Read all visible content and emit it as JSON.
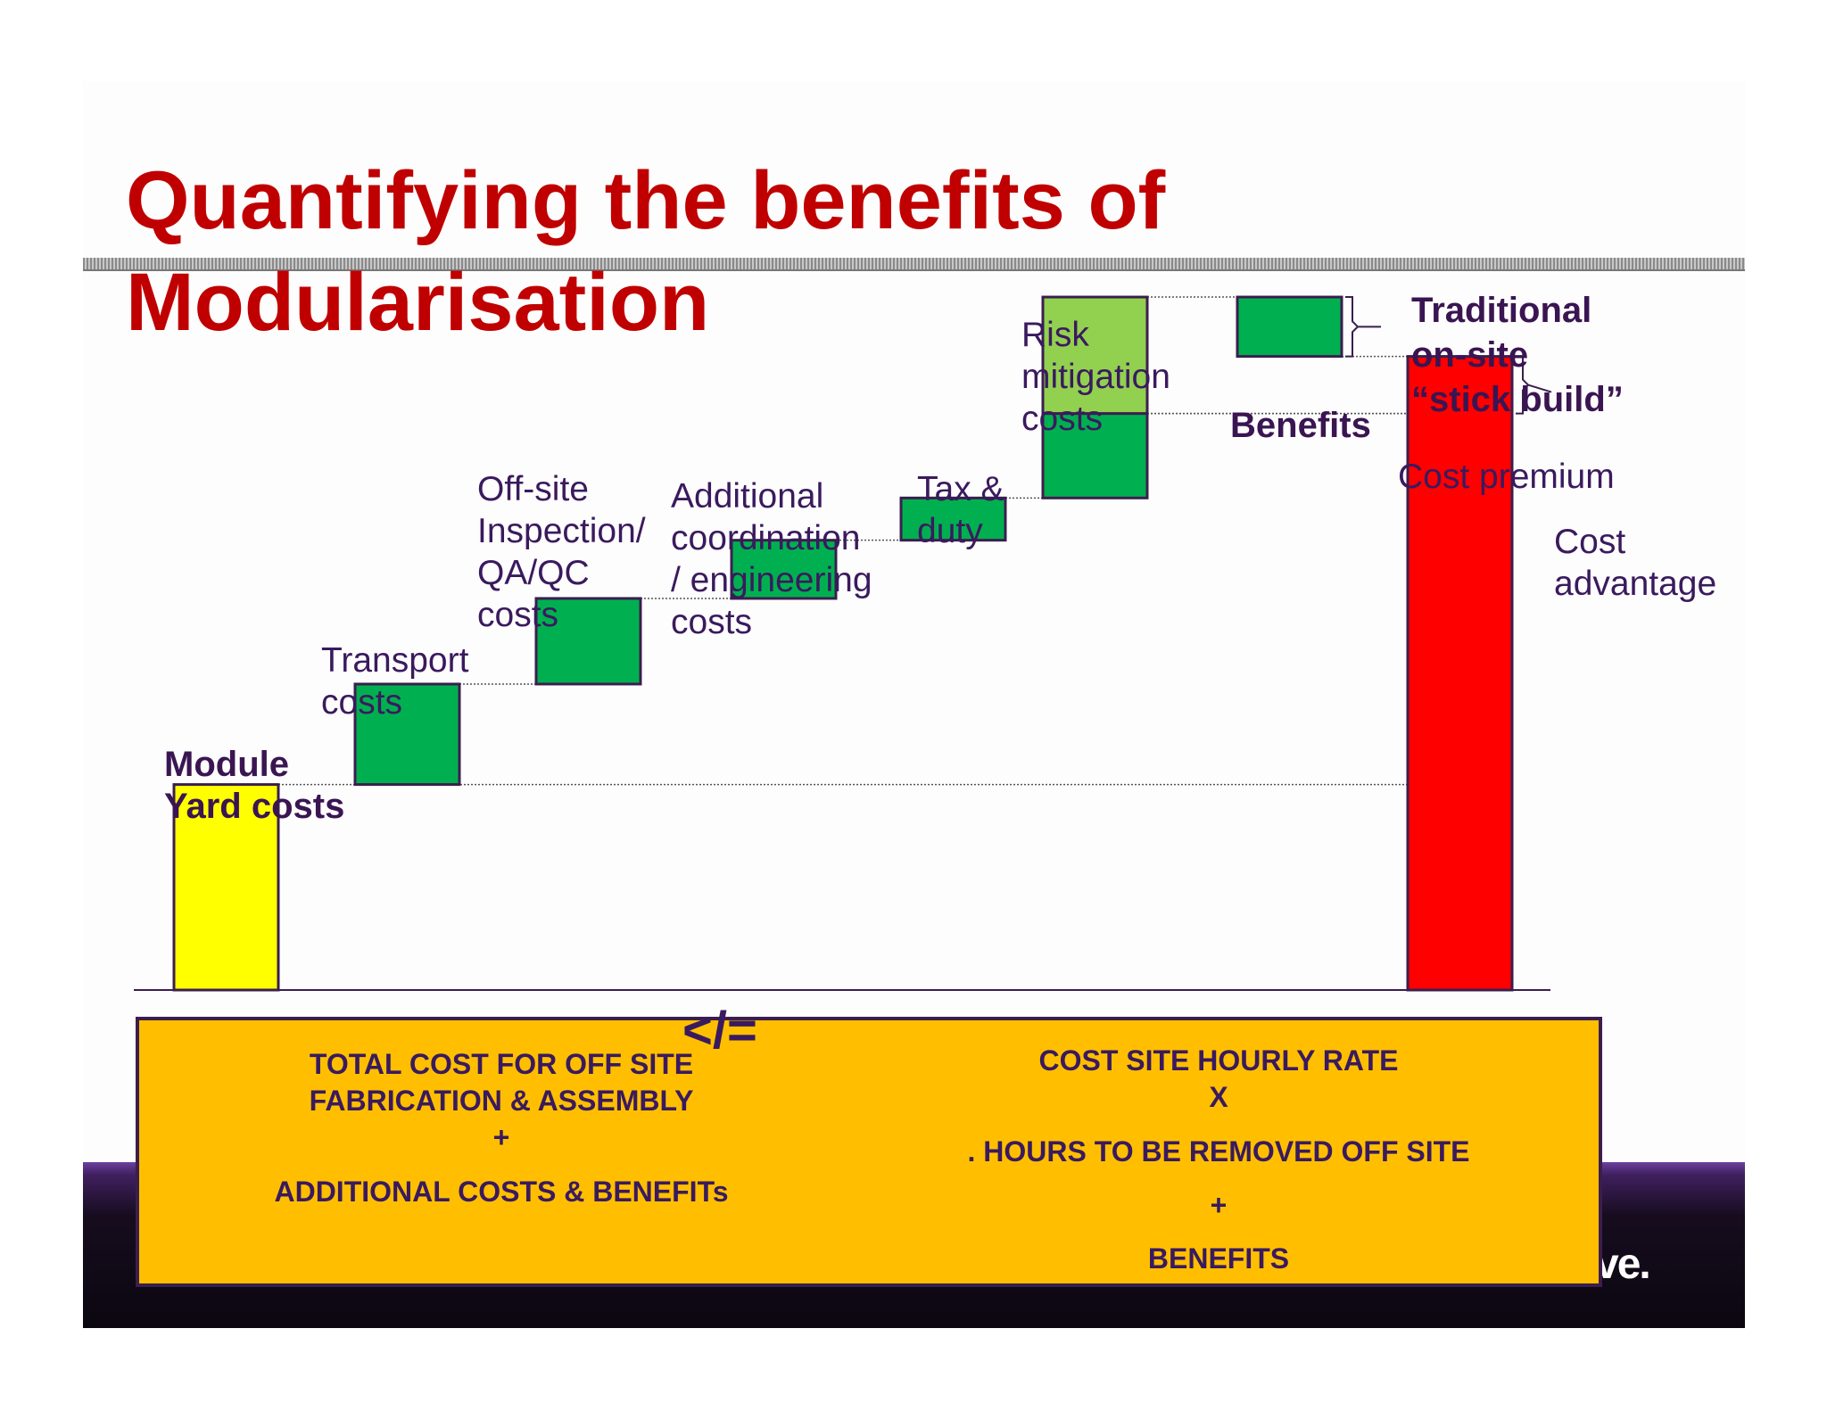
{
  "slide": {
    "title": "Quantifying the benefits of Modularisation",
    "footer_logo_fragment": "ve."
  },
  "chart_data": {
    "type": "waterfall",
    "steps": [
      {
        "label": "Module\nYard costs",
        "kind": "base",
        "start": 0,
        "end": 180,
        "color": "#ffff00"
      },
      {
        "label": "Transport\ncosts",
        "kind": "increment",
        "start": 180,
        "end": 268,
        "color": "#00b050"
      },
      {
        "label": "Off-site\nInspection/\nQA/QC\ncosts",
        "kind": "increment",
        "start": 268,
        "end": 343,
        "color": "#00b050"
      },
      {
        "label": "Additional\ncoordination\n/ engineering\ncosts",
        "kind": "increment",
        "start": 343,
        "end": 394,
        "color": "#00b050"
      },
      {
        "label": "Tax &\nduty",
        "kind": "increment",
        "start": 394,
        "end": 431,
        "color": "#00b050"
      },
      {
        "label": "Risk\nmitigation\ncosts",
        "kind": "increment",
        "start": 431,
        "end": 505,
        "color": "#00b050",
        "upper_segment": {
          "start": 505,
          "end": 607,
          "color": "#92d050"
        }
      },
      {
        "label": "Benefits",
        "kind": "increment",
        "start": 555,
        "end": 607,
        "color": "#00b050"
      },
      {
        "label": "Traditional\non-site\n“stick build”",
        "kind": "total",
        "start": 0,
        "end": 555,
        "color": "#ff0000"
      }
    ],
    "annotations": [
      {
        "text": "Cost premium"
      },
      {
        "text": "Cost\nadvantage"
      }
    ]
  },
  "formula": {
    "left_line1": "TOTAL COST FOR OFF SITE\nFABRICATION & ASSEMBLY",
    "left_plus": "+",
    "left_line2": "ADDITIONAL COSTS & BENEFITs",
    "operator": "</=",
    "right_line1": "COST SITE HOURLY RATE",
    "right_x": "X",
    "right_line2": ". HOURS TO BE REMOVED OFF SITE",
    "right_plus": "+",
    "right_line3": "BENEFITS"
  }
}
